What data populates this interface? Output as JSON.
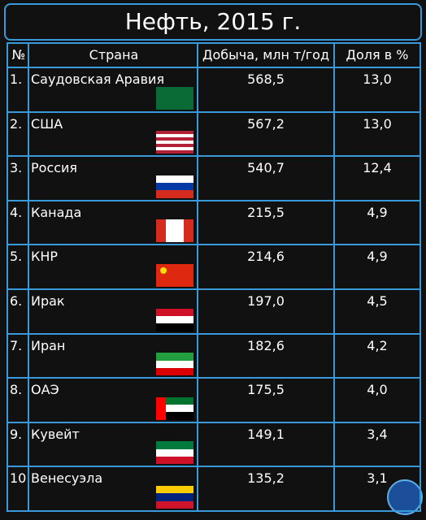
{
  "title": "Нефть, 2015 г.",
  "table": {
    "header": [
      "№",
      "Страна",
      "Добыча, млн т/год",
      "Доля в %"
    ],
    "rows": [
      [
        "1.",
        "Саудовская Аравия",
        "568,5",
        "13,0"
      ],
      [
        "2.",
        "США",
        "567,2",
        "13,0"
      ],
      [
        "3.",
        "Россия",
        "540,7",
        "12,4"
      ],
      [
        "4.",
        "Канада",
        "215,5",
        "4,9"
      ],
      [
        "5.",
        "КНР",
        "214,6",
        "4,9"
      ],
      [
        "6.",
        "Ирак",
        "197,0",
        "4,5"
      ],
      [
        "7.",
        "Иран",
        "182,6",
        "4,2"
      ],
      [
        "8.",
        "ОАЭ",
        "175,5",
        "4,0"
      ],
      [
        "9.",
        "Кувейт",
        "149,1",
        "3,4"
      ],
      [
        "10",
        "Венесуэла",
        "135,2",
        "3,1"
      ]
    ]
  }
}
